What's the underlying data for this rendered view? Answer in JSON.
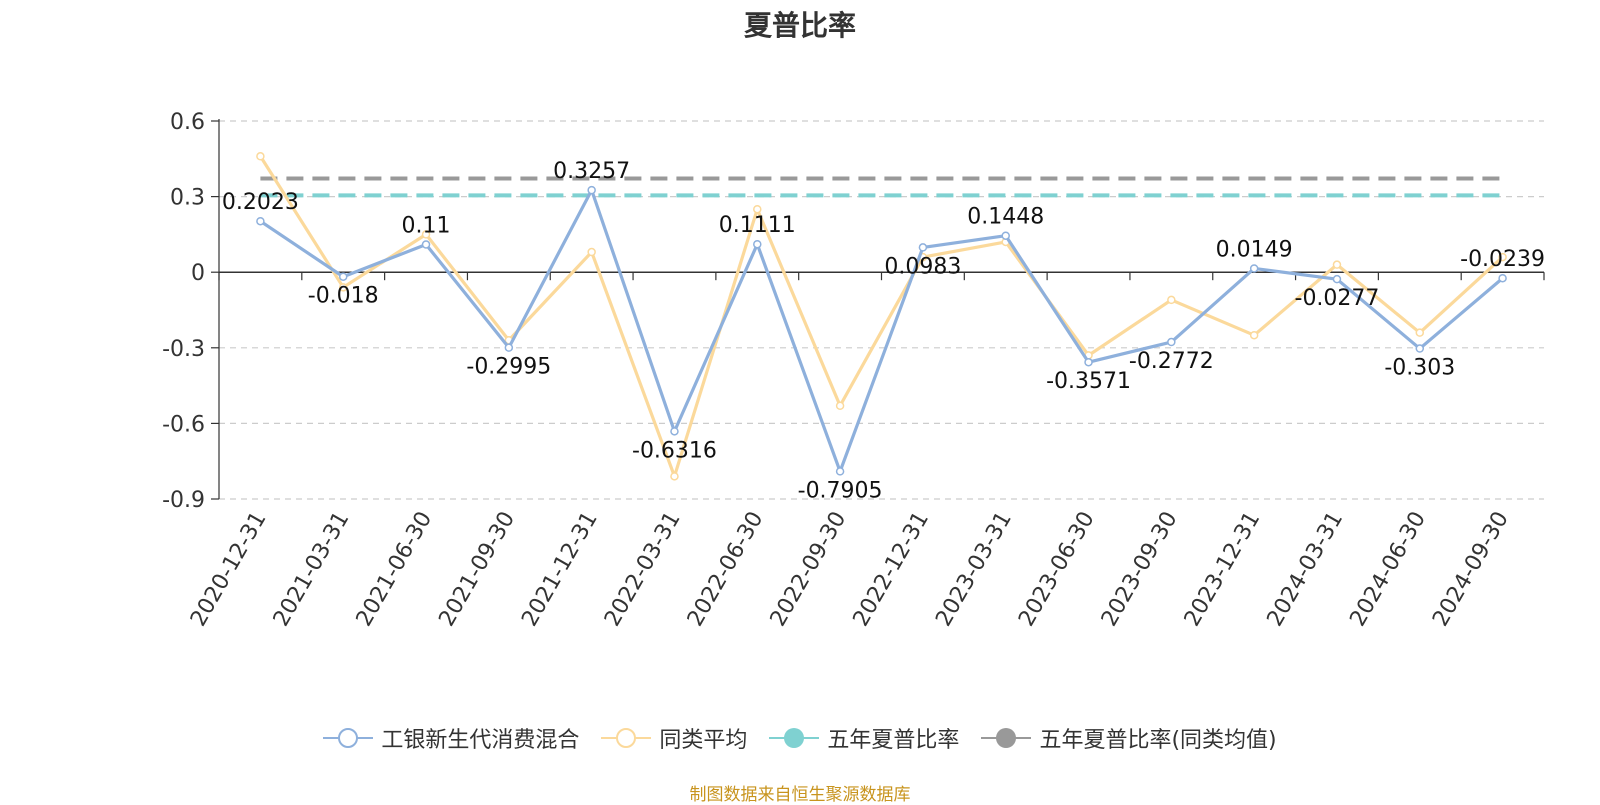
{
  "chart_data": {
    "type": "line",
    "title": "夏普比率",
    "categories": [
      "2020-12-31",
      "2021-03-31",
      "2021-06-30",
      "2021-09-30",
      "2021-12-31",
      "2022-03-31",
      "2022-06-30",
      "2022-09-30",
      "2022-12-31",
      "2023-03-31",
      "2023-06-30",
      "2023-09-30",
      "2023-12-31",
      "2024-03-31",
      "2024-06-30",
      "2024-09-30"
    ],
    "ylim": [
      -0.9,
      0.6
    ],
    "yticks": [
      "0.6",
      "0.3",
      "0",
      "-0.3",
      "-0.6",
      "-0.9"
    ],
    "grid": true,
    "legend_position": "bottom",
    "series": [
      {
        "name": "工银新生代消费混合",
        "color": "#8eb0dc",
        "values": [
          0.2023,
          -0.018,
          0.11,
          -0.2995,
          0.3257,
          -0.6316,
          0.1111,
          -0.7905,
          0.0983,
          0.1448,
          -0.3571,
          -0.2772,
          0.0149,
          -0.0277,
          -0.303,
          -0.0239
        ],
        "labels": [
          "0.2023",
          "-0.018",
          "0.11",
          "-0.2995",
          "0.3257",
          "-0.6316",
          "0.1111",
          "-0.7905",
          "0.0983",
          "0.1448",
          "-0.3571",
          "-0.2772",
          "0.0149",
          "-0.0277",
          "-0.303",
          "-0.0239"
        ]
      },
      {
        "name": "同类平均",
        "color": "#fbd99b",
        "values": [
          0.46,
          -0.06,
          0.15,
          -0.27,
          0.08,
          -0.81,
          0.25,
          -0.53,
          0.06,
          0.12,
          -0.33,
          -0.11,
          -0.25,
          0.03,
          -0.24,
          0.06
        ]
      },
      {
        "name": "五年夏普比率",
        "color": "#7fd1d1",
        "constant": 0.305
      },
      {
        "name": "五年夏普比率(同类均值)",
        "color": "#999999",
        "constant": 0.372
      }
    ]
  },
  "footer": {
    "source": "制图数据来自恒生聚源数据库"
  }
}
